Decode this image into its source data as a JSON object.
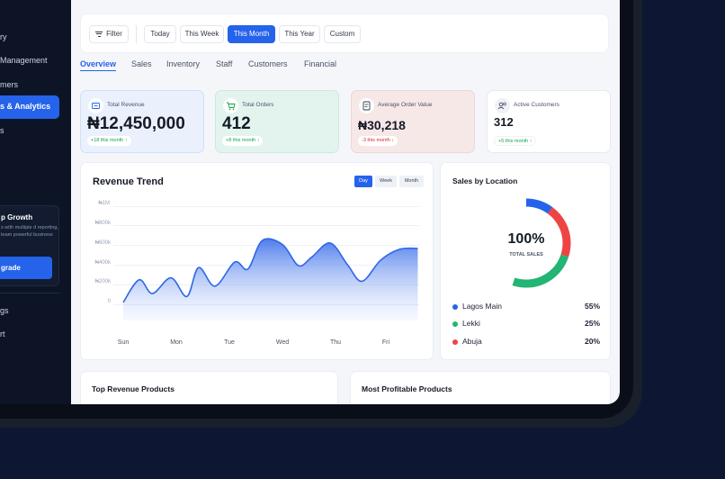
{
  "sidebar": {
    "items": [
      {
        "label": "ry"
      },
      {
        "label": "Management"
      },
      {
        "label": "mers"
      },
      {
        "label": "s & Analytics"
      },
      {
        "label": "s"
      },
      {
        "label": "gs"
      },
      {
        "label": "rt"
      }
    ],
    "promo": {
      "title": "p Growth",
      "text": "s with multiple d reporting, team powerful business",
      "button": "grade"
    }
  },
  "toolbar": {
    "filter_label": "Filter",
    "ranges": [
      "Today",
      "This Week",
      "This Month",
      "This Year",
      "Custom"
    ],
    "active_range": "This Month"
  },
  "tabs": [
    "Overview",
    "Sales",
    "Inventory",
    "Staff",
    "Customers",
    "Financial"
  ],
  "active_tab": "Overview",
  "cards": [
    {
      "label": "Total Revenue",
      "value": "₦12,450,000",
      "badge": "+18 this month ↑",
      "icon": "receipt-icon",
      "bg": "#eaf1fd",
      "border": "#cfe0fb",
      "badge_color": "#16a34a"
    },
    {
      "label": "Total Orders",
      "value": "412",
      "badge": "+8 this month ↑",
      "icon": "cart-icon",
      "bg": "#e3f4ef",
      "border": "#cde9df",
      "badge_color": "#16a34a"
    },
    {
      "label": "Average Order Value",
      "value": "₦30,218",
      "badge": "-3 this month ↓",
      "icon": "receipt-icon",
      "bg": "#f7e8e8",
      "border": "#eed6d6",
      "badge_color": "#dc2626"
    },
    {
      "label": "Active Customers",
      "value": "312",
      "badge": "+5 this month ↑",
      "icon": "users-icon",
      "bg": "#ffffff",
      "border": "#e6eaf1",
      "badge_color": "#16a34a"
    }
  ],
  "revenue_trend": {
    "title": "Revenue Trend",
    "segments": [
      "Day",
      "Week",
      "Month"
    ],
    "active_segment": "Day"
  },
  "sales_by_location": {
    "title": "Sales by Location",
    "center_value": "100%",
    "center_label": "TOTAL SALES",
    "legend": [
      {
        "name": "Lagos Main",
        "pct": "55%",
        "color": "#2563eb"
      },
      {
        "name": "Lekki",
        "pct": "25%",
        "color": "#22b573"
      },
      {
        "name": "Abuja",
        "pct": "20%",
        "color": "#ef4444"
      }
    ]
  },
  "bottom_panels": [
    "Top Revenue Products",
    "Most Profitable Products"
  ],
  "chart_data": {
    "type": "area",
    "title": "Revenue Trend",
    "categories": [
      "Sun",
      "Mon",
      "Tue",
      "Wed",
      "Thu",
      "Fri"
    ],
    "y_ticks": [
      "₦1M",
      "₦800k",
      "₦600k",
      "₦400k",
      "₦200k",
      "0"
    ],
    "ylim": [
      0,
      1000000
    ],
    "grid": true,
    "x": [
      0,
      0.3,
      0.55,
      0.9,
      1.2,
      1.42,
      1.73,
      2.1,
      2.35,
      2.62,
      3.0,
      3.3,
      3.55,
      3.9,
      4.23,
      4.5,
      4.85,
      5.2,
      5.55
    ],
    "values": [
      20000,
      250000,
      110000,
      270000,
      80000,
      375000,
      185000,
      430000,
      360000,
      650000,
      610000,
      395000,
      480000,
      625000,
      400000,
      235000,
      450000,
      560000,
      570000
    ]
  }
}
